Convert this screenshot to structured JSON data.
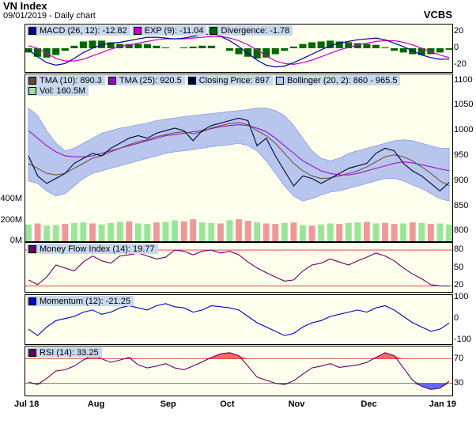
{
  "header": {
    "title": "VN Index",
    "subtitle": "09/01/2019 - Daily chart",
    "brand": "VCBS"
  },
  "colors": {
    "macd": "#000099",
    "exp": "#cc00cc",
    "divergence": "#006600",
    "tma10": "#6b4a2b",
    "tma25": "#9900cc",
    "close": "#000033",
    "bollinger_fill": "#b8c6ee",
    "bollinger_line": "#8a9ce0",
    "vol_up": "#99e699",
    "vol_down": "#ee9999",
    "mfi": "#660066",
    "momentum": "#0000cc",
    "rsi": "#660066",
    "rsi_hi_fill": "#ff6666",
    "rsi_lo_fill": "#6666ff"
  },
  "legends": {
    "macd": [
      {
        "label": "MACD (26, 12): -12.82",
        "color": "#000099"
      },
      {
        "label": "EXP (9): -11.04",
        "color": "#cc00cc"
      },
      {
        "label": "Divergence: -1.78",
        "color": "#006600"
      }
    ],
    "price": [
      {
        "label": "TMA (10): 890.3",
        "color": "#6b4a2b"
      },
      {
        "label": "TMA (25): 920.5",
        "color": "#9900cc"
      },
      {
        "label": "Closing Price: 897",
        "color": "#000033"
      },
      {
        "label": "Bollinger (20, 2): 860 - 965.5",
        "color": "#b8c6ee"
      }
    ],
    "price_row2": [
      {
        "label": "Vol: 160.5M",
        "color": "#99e699"
      }
    ],
    "mfi": [
      {
        "label": "Money Flow Index (14): 19.77",
        "color": "#660066"
      }
    ],
    "momentum": [
      {
        "label": "Momentum (12): -21.25",
        "color": "#0000cc"
      }
    ],
    "rsi": [
      {
        "label": "RSI (14): 33.25",
        "color": "#660066"
      }
    ]
  },
  "chart_data": [
    {
      "type": "line",
      "panel": "macd",
      "yticks": [
        "20",
        "0",
        "-20"
      ],
      "ylim": [
        -28,
        28
      ],
      "series": [
        {
          "name": "MACD (26, 12)",
          "values": [
            -2,
            -10,
            -17,
            -20,
            -18,
            -12,
            -5,
            0,
            4,
            6,
            7,
            9,
            11,
            13,
            13,
            12,
            11,
            12,
            14,
            16,
            17,
            14,
            9,
            2,
            -6,
            -14,
            -20,
            -22,
            -21,
            -17,
            -12,
            -7,
            -2,
            3,
            6,
            8,
            10,
            11,
            12,
            10,
            6,
            2,
            -3,
            -8,
            -11,
            -13,
            -12.82
          ]
        },
        {
          "name": "EXP (9)",
          "values": [
            3,
            0,
            -6,
            -12,
            -15,
            -15,
            -13,
            -9,
            -5,
            -1,
            2,
            4,
            6,
            8,
            10,
            11,
            11,
            11,
            12,
            13,
            14,
            14,
            12,
            9,
            4,
            -2,
            -9,
            -15,
            -18,
            -19,
            -17,
            -14,
            -10,
            -6,
            -2,
            1,
            4,
            6,
            8,
            9,
            9,
            7,
            4,
            0,
            -4,
            -8,
            -11.04
          ]
        },
        {
          "name": "Divergence",
          "values": [
            -5,
            -10,
            -11,
            -8,
            -3,
            3,
            8,
            9,
            9,
            7,
            5,
            5,
            5,
            5,
            3,
            1,
            0,
            1,
            2,
            3,
            3,
            0,
            -3,
            -7,
            -10,
            -12,
            -11,
            -7,
            -3,
            2,
            5,
            7,
            8,
            9,
            8,
            7,
            6,
            5,
            4,
            1,
            -3,
            -5,
            -7,
            -8,
            -7,
            -5,
            -1.78
          ]
        }
      ]
    },
    {
      "type": "line",
      "panel": "price",
      "yticks": [
        "1100",
        "1050",
        "1000",
        "950",
        "900",
        "850",
        "800"
      ],
      "ylim": [
        780,
        1112
      ],
      "x_labels": [
        "Jul 18",
        "Aug",
        "Sep",
        "Oct",
        "Nov",
        "Dec",
        "Jan 19"
      ],
      "series": [
        {
          "name": "Closing Price",
          "values": [
            950,
            910,
            895,
            905,
            915,
            935,
            945,
            955,
            950,
            965,
            975,
            985,
            990,
            985,
            995,
            1000,
            1005,
            1000,
            980,
            1000,
            1010,
            1015,
            1020,
            1025,
            1020,
            970,
            985,
            950,
            920,
            890,
            910,
            905,
            895,
            905,
            915,
            925,
            930,
            935,
            955,
            965,
            960,
            935,
            920,
            910,
            895,
            880,
            897
          ]
        },
        {
          "name": "TMA (10)",
          "values": [
            935,
            925,
            915,
            912,
            915,
            925,
            935,
            945,
            950,
            958,
            965,
            972,
            978,
            982,
            988,
            992,
            996,
            998,
            994,
            998,
            1005,
            1010,
            1014,
            1016,
            1012,
            1000,
            990,
            975,
            955,
            935,
            920,
            910,
            905,
            906,
            910,
            915,
            920,
            928,
            938,
            948,
            952,
            948,
            940,
            928,
            915,
            900,
            890.3
          ]
        },
        {
          "name": "TMA (25)",
          "values": [
            1000,
            985,
            970,
            958,
            950,
            948,
            948,
            950,
            955,
            960,
            965,
            970,
            975,
            980,
            985,
            990,
            992,
            995,
            998,
            1000,
            1004,
            1008,
            1010,
            1012,
            1010,
            1005,
            998,
            985,
            970,
            955,
            940,
            930,
            920,
            915,
            912,
            912,
            915,
            920,
            925,
            930,
            935,
            938,
            936,
            932,
            928,
            924,
            920.5
          ]
        },
        {
          "name": "Bollinger upper",
          "values": [
            1045,
            1030,
            1000,
            975,
            960,
            965,
            975,
            985,
            995,
            1000,
            1005,
            1008,
            1012,
            1015,
            1020,
            1023,
            1025,
            1028,
            1030,
            1032,
            1034,
            1036,
            1038,
            1040,
            1042,
            1045,
            1045,
            1040,
            1030,
            1010,
            985,
            960,
            945,
            940,
            945,
            955,
            960,
            965,
            970,
            975,
            980,
            982,
            980,
            975,
            970,
            965,
            965.5
          ]
        },
        {
          "name": "Bollinger lower",
          "values": [
            900,
            895,
            880,
            870,
            875,
            890,
            905,
            915,
            920,
            925,
            930,
            935,
            940,
            945,
            950,
            955,
            958,
            960,
            962,
            965,
            968,
            970,
            972,
            975,
            970,
            960,
            940,
            915,
            890,
            870,
            860,
            865,
            872,
            878,
            880,
            885,
            890,
            895,
            900,
            905,
            905,
            900,
            892,
            885,
            875,
            865,
            860
          ]
        }
      ],
      "volume": {
        "name": "Vol",
        "axis_ticks": [
          "400M",
          "200M",
          "0M"
        ],
        "ylim": [
          0,
          400
        ],
        "values": [
          160,
          170,
          150,
          155,
          165,
          175,
          180,
          170,
          160,
          175,
          185,
          190,
          170,
          165,
          180,
          185,
          200,
          190,
          210,
          180,
          175,
          170,
          200,
          210,
          195,
          180,
          170,
          165,
          175,
          180,
          155,
          150,
          160,
          170,
          165,
          175,
          180,
          185,
          170,
          175,
          165,
          170,
          180,
          175,
          165,
          170,
          160.5
        ],
        "up": [
          1,
          0,
          1,
          1,
          0,
          1,
          1,
          0,
          1,
          1,
          1,
          0,
          1,
          1,
          0,
          1,
          1,
          0,
          0,
          1,
          1,
          0,
          1,
          0,
          0,
          1,
          0,
          0,
          1,
          0,
          1,
          0,
          1,
          1,
          0,
          1,
          1,
          0,
          1,
          0,
          0,
          1,
          0,
          1,
          0,
          1,
          1
        ]
      }
    },
    {
      "type": "line",
      "panel": "mfi",
      "yticks": [
        "80",
        "50",
        "20"
      ],
      "ylim": [
        10,
        92
      ],
      "levels": [
        80,
        20
      ],
      "series": [
        {
          "name": "Money Flow Index (14)",
          "values": [
            30,
            22,
            35,
            55,
            50,
            45,
            60,
            70,
            62,
            58,
            70,
            72,
            75,
            70,
            65,
            68,
            80,
            78,
            72,
            78,
            80,
            75,
            78,
            72,
            60,
            50,
            42,
            35,
            28,
            30,
            45,
            55,
            58,
            65,
            60,
            55,
            62,
            68,
            75,
            70,
            62,
            50,
            40,
            32,
            22,
            20,
            19.77
          ]
        }
      ]
    },
    {
      "type": "line",
      "panel": "momentum",
      "yticks": [
        "100",
        "0",
        "-100"
      ],
      "ylim": [
        -120,
        110
      ],
      "series": [
        {
          "name": "Momentum (12)",
          "values": [
            -50,
            -80,
            -40,
            -10,
            0,
            10,
            30,
            40,
            20,
            30,
            50,
            60,
            50,
            40,
            60,
            70,
            55,
            50,
            30,
            40,
            60,
            55,
            50,
            40,
            10,
            -20,
            -40,
            -60,
            -80,
            -70,
            -40,
            -20,
            -10,
            10,
            20,
            30,
            40,
            30,
            50,
            60,
            40,
            10,
            -20,
            -40,
            -60,
            -50,
            -21.25
          ]
        }
      ]
    },
    {
      "type": "line",
      "panel": "rsi",
      "yticks": [
        "70",
        "30"
      ],
      "ylim": [
        10,
        90
      ],
      "levels": [
        70,
        30
      ],
      "series": [
        {
          "name": "RSI (14)",
          "values": [
            32,
            28,
            38,
            50,
            52,
            58,
            68,
            75,
            70,
            64,
            68,
            72,
            60,
            55,
            58,
            62,
            55,
            52,
            58,
            65,
            72,
            78,
            80,
            75,
            58,
            40,
            35,
            30,
            28,
            34,
            45,
            55,
            58,
            62,
            56,
            58,
            60,
            64,
            72,
            80,
            75,
            55,
            35,
            25,
            20,
            22,
            33.25
          ]
        }
      ]
    }
  ]
}
